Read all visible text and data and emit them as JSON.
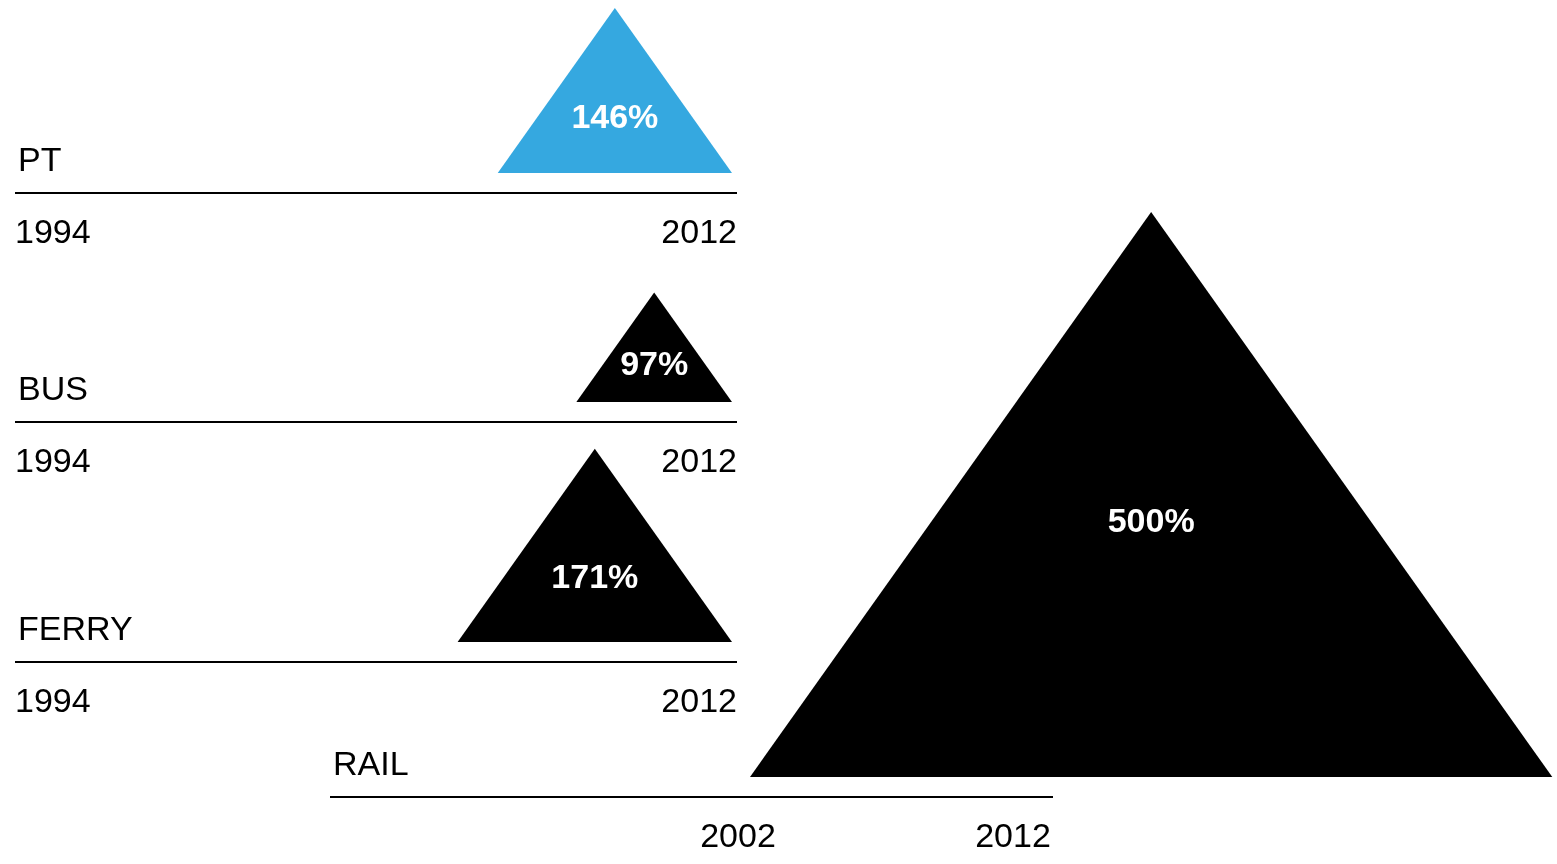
{
  "chart_data": [
    {
      "type": "other",
      "title": "PT",
      "values": [
        146
      ],
      "value_labels": [
        "146%"
      ],
      "colors": [
        "#35a8e0"
      ],
      "annotations": [
        "1994",
        "2012"
      ]
    },
    {
      "type": "other",
      "title": "BUS",
      "values": [
        97
      ],
      "value_labels": [
        "97%"
      ],
      "colors": [
        "#000000"
      ],
      "annotations": [
        "1994",
        "2012"
      ]
    },
    {
      "type": "other",
      "title": "FERRY",
      "values": [
        171
      ],
      "value_labels": [
        "171%"
      ],
      "colors": [
        "#000000"
      ],
      "annotations": [
        "1994",
        "2012"
      ]
    },
    {
      "type": "other",
      "title": "RAIL",
      "values": [
        500
      ],
      "value_labels": [
        "500%"
      ],
      "colors": [
        "#000000"
      ],
      "annotations": [
        "2002",
        "2012"
      ]
    }
  ]
}
